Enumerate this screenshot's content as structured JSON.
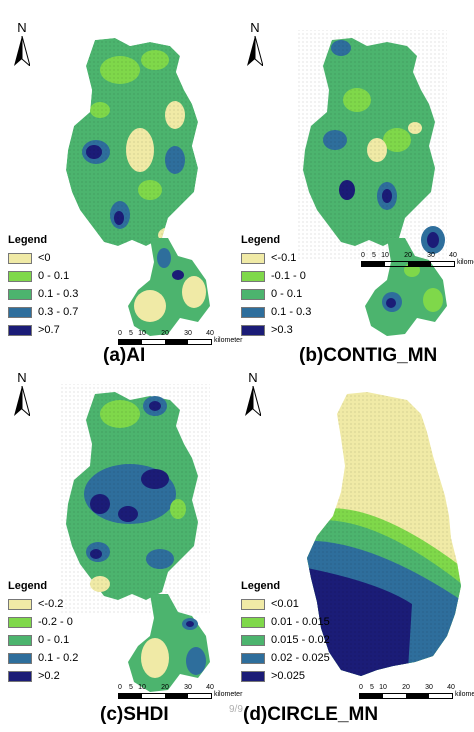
{
  "north_label": "N",
  "scale_ticks": [
    "0",
    "5",
    "10",
    "20",
    "30",
    "40"
  ],
  "scale_unit": "kilometer",
  "page_number": "9/9",
  "panels": [
    {
      "caption": "(a)AI",
      "legend_title": "Legend",
      "classes": [
        {
          "label": "<0",
          "color": "#f0eaa6"
        },
        {
          "label": "0 - 0.1",
          "color": "#7fd84a"
        },
        {
          "label": "0.1 - 0.3",
          "color": "#4cb46e"
        },
        {
          "label": "0.3 - 0.7",
          "color": "#2e6e9c"
        },
        {
          "label": ">0.7",
          "color": "#1b1c77"
        }
      ]
    },
    {
      "caption": "(b)CONTIG_MN",
      "legend_title": "Legend",
      "classes": [
        {
          "label": "<-0.1",
          "color": "#f0eaa6"
        },
        {
          "label": "-0.1 - 0",
          "color": "#7fd84a"
        },
        {
          "label": "0 - 0.1",
          "color": "#4cb46e"
        },
        {
          "label": "0.1 - 0.3",
          "color": "#2e6e9c"
        },
        {
          "label": ">0.3",
          "color": "#1b1c77"
        }
      ]
    },
    {
      "caption": "(c)SHDI",
      "legend_title": "Legend",
      "classes": [
        {
          "label": "<-0.2",
          "color": "#f0eaa6"
        },
        {
          "label": "-0.2 - 0",
          "color": "#7fd84a"
        },
        {
          "label": "0 - 0.1",
          "color": "#4cb46e"
        },
        {
          "label": "0.1 - 0.2",
          "color": "#2e6e9c"
        },
        {
          "label": ">0.2",
          "color": "#1b1c77"
        }
      ]
    },
    {
      "caption": "(d)CIRCLE_MN",
      "legend_title": "Legend",
      "classes": [
        {
          "label": "<0.01",
          "color": "#f0eaa6"
        },
        {
          "label": "0.01 - 0.015",
          "color": "#7fd84a"
        },
        {
          "label": "0.015 - 0.02",
          "color": "#4cb46e"
        },
        {
          "label": "0.02 - 0.025",
          "color": "#2e6e9c"
        },
        {
          "label": ">0.025",
          "color": "#1b1c77"
        }
      ]
    }
  ]
}
